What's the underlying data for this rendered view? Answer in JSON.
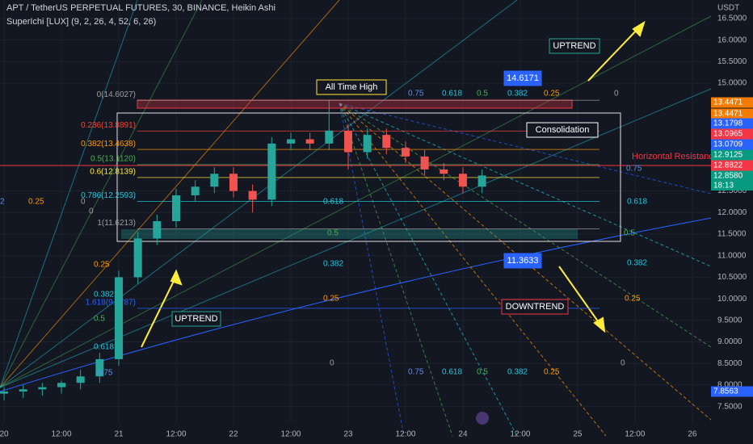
{
  "header": {
    "symbol": "APT / TetherUS PERPETUAL FUTURES, 30, BINANCE, Heikin Ashi",
    "indicator": "SuperIchi [LUX] (9, 2, 26, 4, 52, 6, 26)",
    "currency": "USDT"
  },
  "chart_data": {
    "type": "candlestick",
    "x": [
      0,
      4,
      8,
      12,
      16,
      20,
      24,
      28,
      32,
      36,
      40,
      44,
      48,
      52,
      56,
      60,
      64,
      68,
      72,
      76,
      80,
      84,
      88,
      92,
      96,
      100
    ],
    "open": [
      7.8,
      7.85,
      7.9,
      7.95,
      8.05,
      8.2,
      8.6,
      10.5,
      11.4,
      11.8,
      12.4,
      12.6,
      12.9,
      12.5,
      12.3,
      13.6,
      13.7,
      13.6,
      13.9,
      13.4,
      13.8,
      13.5,
      13.3,
      13.0,
      12.9,
      12.6
    ],
    "high": [
      7.95,
      8.0,
      8.05,
      8.1,
      8.35,
      8.75,
      10.65,
      11.55,
      11.95,
      12.55,
      12.75,
      13.05,
      13.05,
      12.65,
      13.75,
      13.85,
      13.85,
      14.6,
      14.05,
      13.95,
      13.95,
      13.65,
      13.45,
      13.15,
      13.05,
      13.0
    ],
    "low": [
      7.65,
      7.7,
      7.75,
      7.8,
      7.9,
      8.05,
      8.45,
      10.35,
      11.25,
      11.65,
      12.25,
      12.45,
      12.35,
      12.0,
      12.15,
      13.45,
      13.45,
      13.45,
      13.0,
      13.25,
      13.35,
      13.15,
      12.85,
      12.75,
      12.45,
      12.45
    ],
    "close": [
      7.85,
      7.9,
      7.95,
      8.05,
      8.2,
      8.6,
      10.5,
      11.4,
      11.8,
      12.4,
      12.6,
      12.9,
      12.5,
      12.3,
      13.6,
      13.7,
      13.6,
      13.9,
      13.4,
      13.8,
      13.5,
      13.3,
      13.0,
      12.9,
      12.6,
      12.86
    ],
    "xlim": [
      -0.85,
      147.9
    ],
    "xticks": [
      {
        "value": 0,
        "label": "20"
      },
      {
        "value": 12,
        "label": "12:00"
      },
      {
        "value": 24,
        "label": "21"
      },
      {
        "value": 36,
        "label": "12:00"
      },
      {
        "value": 48,
        "label": "22"
      },
      {
        "value": 60,
        "label": "12:00"
      },
      {
        "value": 72,
        "label": "23"
      },
      {
        "value": 84,
        "label": "12:00"
      },
      {
        "value": 96,
        "label": "24"
      },
      {
        "value": 108,
        "label": "12:00"
      },
      {
        "value": 120,
        "label": "25"
      },
      {
        "value": 132,
        "label": "12:00"
      },
      {
        "value": 144,
        "label": "26"
      }
    ],
    "ylim": [
      7.1,
      16.93
    ],
    "yticks": [
      {
        "value": 16.5,
        "label": "16.5000"
      },
      {
        "value": 16,
        "label": "16.0000"
      },
      {
        "value": 15.5,
        "label": "15.5000"
      },
      {
        "value": 15,
        "label": "15.0000"
      },
      {
        "value": 12.5,
        "label": "12.5000"
      },
      {
        "value": 12,
        "label": "12.0000"
      },
      {
        "value": 11.5,
        "label": "11.5000"
      },
      {
        "value": 11,
        "label": "11.0000"
      },
      {
        "value": 10.5,
        "label": "10.5000"
      },
      {
        "value": 10,
        "label": "10.0000"
      },
      {
        "value": 9.5,
        "label": "9.5000"
      },
      {
        "value": 9,
        "label": "9.0000"
      },
      {
        "value": 8.5,
        "label": "8.5000"
      },
      {
        "value": 8,
        "label": "8.0000"
      },
      {
        "value": 7.5,
        "label": "7.5000"
      }
    ],
    "up_color": "#26a69a",
    "down_color": "#ef5350",
    "fib_levels": [
      {
        "label": "0(14.6027)",
        "price": 14.6027,
        "color": "#9e9e9e"
      },
      {
        "label": "0.236(13.8891)",
        "price": 13.8891,
        "color": "#f44336"
      },
      {
        "label": "0.382(13.4638)",
        "price": 13.4638,
        "color": "#ff9800"
      },
      {
        "label": "0.5(13.1120)",
        "price": 13.112,
        "color": "#4caf50"
      },
      {
        "label": "0.6(12.8139)",
        "price": 12.8139,
        "color": "#ffeb3b"
      },
      {
        "label": "0.786(12.2593)",
        "price": 12.2593,
        "color": "#26c6da"
      },
      {
        "label": "1(11.6213)",
        "price": 11.6213,
        "color": "#9e9e9e"
      },
      {
        "label": "1.618(9.7787)",
        "price": 9.7787,
        "color": "#2962ff"
      }
    ],
    "price_tags": [
      {
        "value": 13.4471,
        "label": "13.4471",
        "color": "#f57c00"
      },
      {
        "value": 13.4471,
        "label": "13.4471",
        "color": "#f57c00"
      },
      {
        "value": 13.1798,
        "label": "13.1798",
        "color": "#2962ff"
      },
      {
        "value": 13.0965,
        "label": "13.0965",
        "color": "#f23645"
      },
      {
        "value": 13.0709,
        "label": "13.0709",
        "color": "#2962ff"
      },
      {
        "value": 12.9125,
        "label": "12.9125",
        "color": "#089981"
      },
      {
        "value": 12.8822,
        "label": "12.8822",
        "color": "#f23645"
      },
      {
        "value": 12.858,
        "label": "12.8580",
        "color": "#089981"
      },
      {
        "value": 7.8563,
        "label": "7.8563",
        "color": "#2962ff"
      }
    ],
    "countdown": "18:13",
    "annotations": {
      "ath": "All Time High",
      "consolidation": "Consolidation",
      "uptrend_top": "UPTREND",
      "uptrend_left": "UPTREND",
      "downtrend": "DOWNTREND",
      "resistance": "Horizontal Resistance",
      "target_high": "14.6171",
      "target_low": "11.3633"
    },
    "fan_labels": [
      "2",
      "0.25",
      "0",
      "0",
      "0.25",
      "0.382",
      "0.5",
      "0.618",
      "0.75",
      "0.75",
      "0.618",
      "0.5",
      "0.382",
      "0.25",
      "0",
      "0.618",
      "0.382",
      "0.25",
      "0",
      "0.5",
      "0.75",
      "0.618",
      "0.5",
      "0.382",
      "0.25",
      "0",
      "0.75",
      "0.618",
      "0.5",
      "0.382",
      "0.25"
    ]
  }
}
